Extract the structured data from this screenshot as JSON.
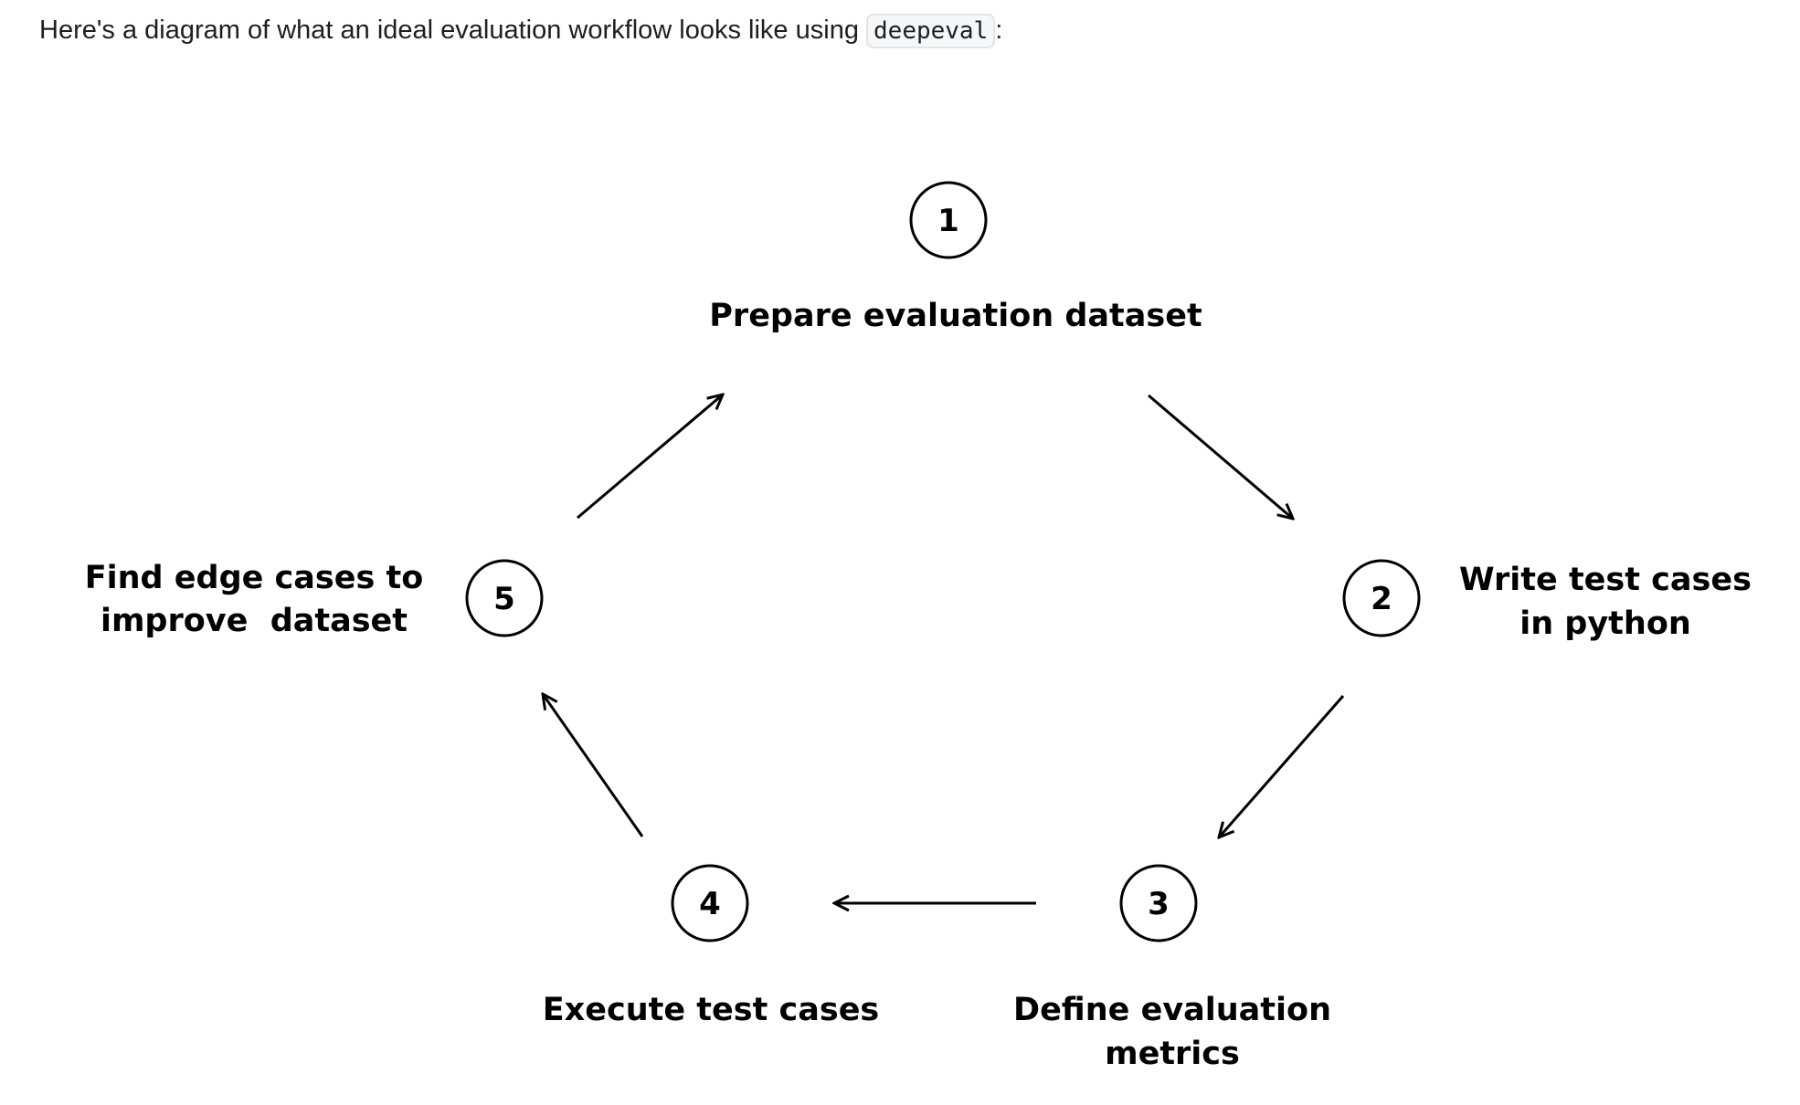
{
  "intro": {
    "text": "Here's a diagram of what an ideal evaluation workflow looks like using ",
    "code": "deepeval",
    "suffix": ":"
  },
  "steps": [
    {
      "number": "1",
      "label_lines": [
        "Prepare evaluation dataset"
      ]
    },
    {
      "number": "2",
      "label_lines": [
        "Write test cases",
        "in python"
      ]
    },
    {
      "number": "3",
      "label_lines": [
        "Define evaluation",
        "metrics"
      ]
    },
    {
      "number": "4",
      "label_lines": [
        "Execute test cases"
      ]
    },
    {
      "number": "5",
      "label_lines": [
        "Find edge cases to",
        "improve  dataset"
      ]
    }
  ],
  "flow": [
    [
      "5",
      "1"
    ],
    [
      "1",
      "2"
    ],
    [
      "2",
      "3"
    ],
    [
      "3",
      "4"
    ],
    [
      "4",
      "5"
    ]
  ]
}
